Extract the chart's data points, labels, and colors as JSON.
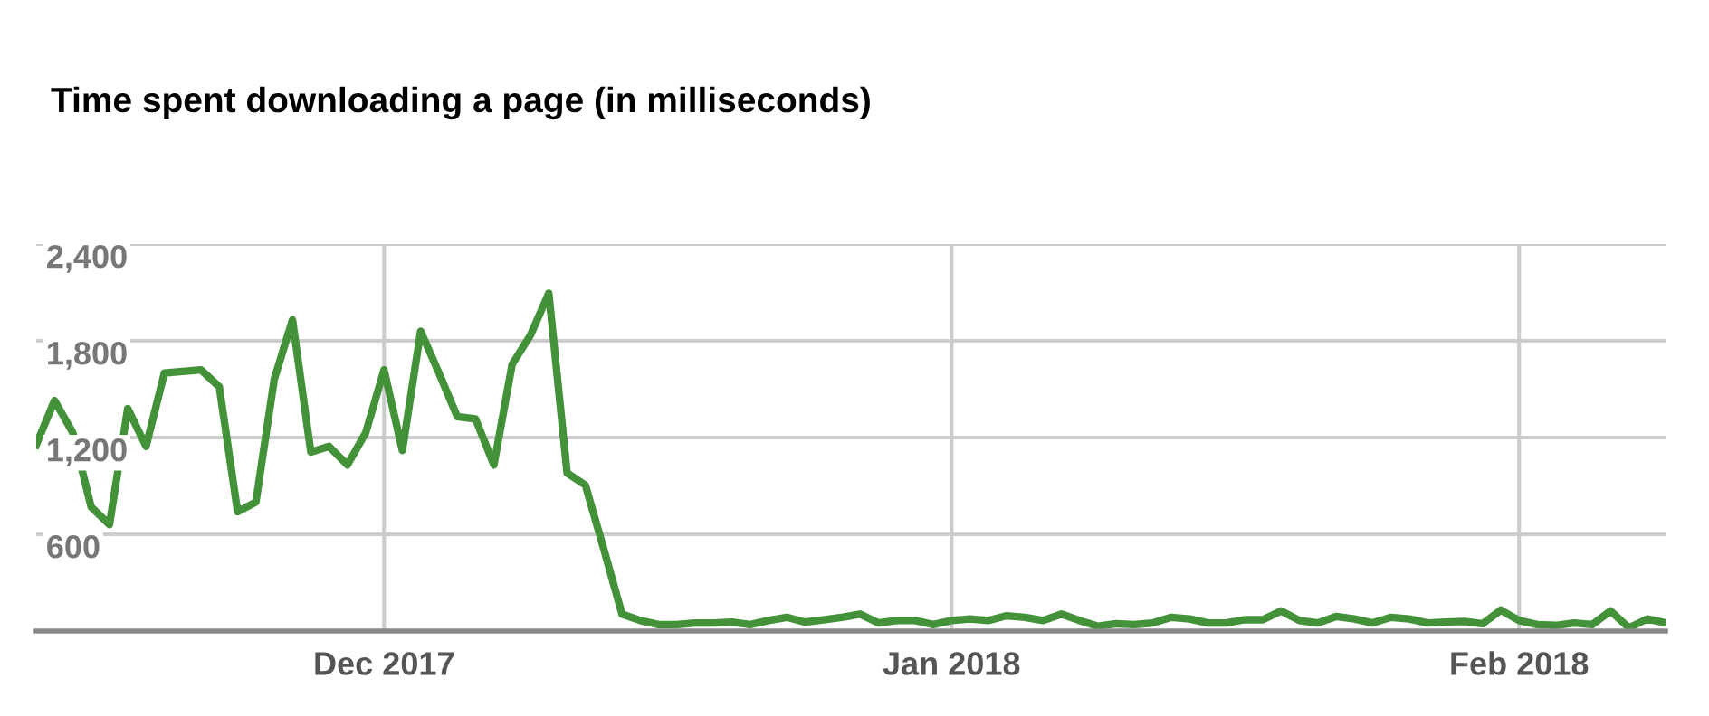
{
  "chart_data": {
    "type": "line",
    "title": "Time spent downloading a page (in milliseconds)",
    "x": [
      "2017-11-12",
      "2017-11-13",
      "2017-11-14",
      "2017-11-15",
      "2017-11-16",
      "2017-11-17",
      "2017-11-18",
      "2017-11-19",
      "2017-11-20",
      "2017-11-21",
      "2017-11-22",
      "2017-11-23",
      "2017-11-24",
      "2017-11-25",
      "2017-11-26",
      "2017-11-27",
      "2017-11-28",
      "2017-11-29",
      "2017-11-30",
      "2017-12-01",
      "2017-12-02",
      "2017-12-03",
      "2017-12-04",
      "2017-12-05",
      "2017-12-06",
      "2017-12-07",
      "2017-12-08",
      "2017-12-09",
      "2017-12-10",
      "2017-12-11",
      "2017-12-12",
      "2017-12-13",
      "2017-12-14",
      "2017-12-15",
      "2017-12-16",
      "2017-12-17",
      "2017-12-18",
      "2017-12-19",
      "2017-12-20",
      "2017-12-21",
      "2017-12-22",
      "2017-12-23",
      "2017-12-24",
      "2017-12-25",
      "2017-12-26",
      "2017-12-27",
      "2017-12-28",
      "2017-12-29",
      "2017-12-30",
      "2017-12-31",
      "2018-01-01",
      "2018-01-02",
      "2018-01-03",
      "2018-01-04",
      "2018-01-05",
      "2018-01-06",
      "2018-01-07",
      "2018-01-08",
      "2018-01-09",
      "2018-01-10",
      "2018-01-11",
      "2018-01-12",
      "2018-01-13",
      "2018-01-14",
      "2018-01-15",
      "2018-01-16",
      "2018-01-17",
      "2018-01-18",
      "2018-01-19",
      "2018-01-20",
      "2018-01-21",
      "2018-01-22",
      "2018-01-23",
      "2018-01-24",
      "2018-01-25",
      "2018-01-26",
      "2018-01-27",
      "2018-01-28",
      "2018-01-29",
      "2018-01-30",
      "2018-01-31",
      "2018-02-01",
      "2018-02-02",
      "2018-02-03",
      "2018-02-04",
      "2018-02-05",
      "2018-02-06",
      "2018-02-07",
      "2018-02-08",
      "2018-02-09"
    ],
    "series": [
      {
        "color": "#43923a",
        "values": [
          1155,
          1430,
          1230,
          770,
          660,
          1380,
          1145,
          1600,
          1610,
          1620,
          1515,
          740,
          800,
          1560,
          1930,
          1110,
          1145,
          1030,
          1230,
          1620,
          1120,
          1860,
          1600,
          1330,
          1315,
          1030,
          1655,
          1835,
          2095,
          980,
          905,
          510,
          105,
          65,
          40,
          40,
          50,
          50,
          55,
          40,
          65,
          85,
          55,
          70,
          85,
          105,
          50,
          65,
          65,
          40,
          65,
          75,
          65,
          95,
          85,
          65,
          105,
          65,
          30,
          45,
          40,
          50,
          85,
          75,
          50,
          50,
          70,
          70,
          125,
          65,
          50,
          90,
          75,
          50,
          85,
          75,
          50,
          55,
          60,
          45,
          130,
          65,
          40,
          35,
          50,
          40,
          125,
          20,
          75,
          50
        ]
      }
    ],
    "xlim": [
      "2017-11-12",
      "2018-02-09"
    ],
    "xticks": [
      {
        "value": "2017-12-01",
        "label": "Dec 2017"
      },
      {
        "value": "2018-01-01",
        "label": "Jan 2018"
      },
      {
        "value": "2018-02-01",
        "label": "Feb 2018"
      }
    ],
    "ylim": [
      0,
      2400
    ],
    "yticks": [
      {
        "value": 600,
        "label": "600"
      },
      {
        "value": 1200,
        "label": "1,200"
      },
      {
        "value": 1800,
        "label": "1,800"
      },
      {
        "value": 2400,
        "label": "2,400"
      }
    ],
    "grid": true,
    "marker": "none",
    "line_style": "solid"
  }
}
